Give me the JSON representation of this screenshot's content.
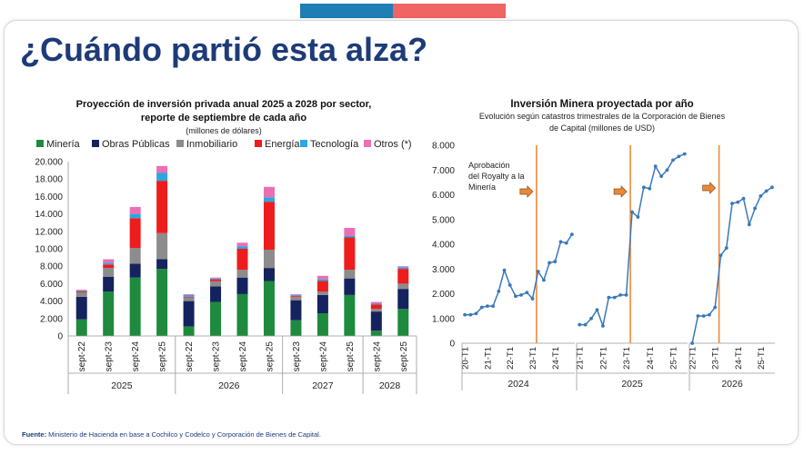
{
  "page": {
    "title": "¿Cuándo partió esta alza?",
    "source_label": "Fuente:",
    "source_text": " Ministerio de Hacienda en base a Cochilco y Codelco y Corporación de Bienes de Capital."
  },
  "chart_data": [
    {
      "type": "bar",
      "stacked": true,
      "title_line1": "Proyección de inversión privada anual 2025 a 2028 por sector,",
      "title_line2": "reporte de septiembre de cada año",
      "subtitle": "(millones de dólares)",
      "legend_position": "top",
      "ylim": [
        0,
        20000
      ],
      "y_ticks": [
        "0",
        "2.000",
        "4.000",
        "6.000",
        "8.000",
        "10.000",
        "12.000",
        "14.000",
        "16.000",
        "18.000",
        "20.000"
      ],
      "categories": [
        "sept-22",
        "sept-23",
        "sept-24",
        "sept-25",
        "sept-22",
        "sept-23",
        "sept-24",
        "sept-25",
        "sept-23",
        "sept-24",
        "sept-25",
        "sept-24",
        "sept-25"
      ],
      "groups": [
        {
          "label": "2025",
          "count": 4
        },
        {
          "label": "2026",
          "count": 4
        },
        {
          "label": "2027",
          "count": 3
        },
        {
          "label": "2028",
          "count": 2
        }
      ],
      "series": [
        {
          "name": "Minería",
          "color": "#1e8a3e",
          "values": [
            1900,
            5100,
            6700,
            7700,
            1100,
            3900,
            4800,
            6300,
            1800,
            2600,
            4700,
            600,
            3100
          ]
        },
        {
          "name": "Obras Públicas",
          "color": "#14235e",
          "values": [
            2600,
            1700,
            1600,
            1100,
            2900,
            1800,
            1900,
            1500,
            2300,
            2100,
            1900,
            2200,
            2300
          ]
        },
        {
          "name": "Inmobiliario",
          "color": "#8c8c8c",
          "values": [
            500,
            1000,
            1800,
            3000,
            400,
            600,
            900,
            2100,
            400,
            400,
            1000,
            300,
            600
          ]
        },
        {
          "name": "Energía",
          "color": "#ee1c1c",
          "values": [
            100,
            400,
            3400,
            6000,
            100,
            200,
            2400,
            5500,
            100,
            1200,
            3700,
            500,
            1700
          ]
        },
        {
          "name": "Tecnología",
          "color": "#2aa8df",
          "values": [
            100,
            200,
            500,
            900,
            200,
            100,
            300,
            500,
            100,
            200,
            200,
            100,
            200
          ]
        },
        {
          "name": "Otros (*)",
          "color": "#ec6fb4",
          "values": [
            100,
            400,
            800,
            800,
            100,
            100,
            400,
            1200,
            100,
            400,
            900,
            200,
            100
          ]
        }
      ]
    },
    {
      "type": "line",
      "title": "Inversión Minera proyectada por año",
      "subtitle_line1": "Evolución según catastros trimestrales de la Corporación de Bienes",
      "subtitle_line2": "de Capital (millones de USD)",
      "ylim": [
        0,
        8000
      ],
      "y_ticks": [
        "0",
        "1.000",
        "2.000",
        "3.000",
        "4.000",
        "5.000",
        "6.000",
        "7.000",
        "8.000"
      ],
      "line_color": "#3a78b8",
      "marker_line_color": "#ee8a3a",
      "annotation": "Aprobación del Royalty a la Minería",
      "annotation_lines": [
        "Aprobación",
        "del Royalty a la",
        "Minería"
      ],
      "panels": [
        {
          "year": "2024",
          "tick_labels": [
            "20-T1",
            "21-T1",
            "22-T1",
            "23-T1",
            "24-T1"
          ],
          "values": [
            1150,
            1150,
            1200,
            1450,
            1500,
            1500,
            2100,
            2950,
            2350,
            1900,
            1950,
            2050,
            1800,
            2900,
            2550,
            3250,
            3300,
            4100,
            4050,
            4400
          ],
          "marker_index": 13
        },
        {
          "year": "2025",
          "tick_labels": [
            "21-T1",
            "22-T1",
            "23-T1",
            "24-T1",
            "25-T1"
          ],
          "values": [
            750,
            750,
            1000,
            1350,
            700,
            1850,
            1850,
            1950,
            1950,
            5300,
            5100,
            6300,
            6250,
            7150,
            6750,
            7000,
            7400,
            7550,
            7650
          ],
          "marker_index": 9
        },
        {
          "year": "2026",
          "tick_labels": [
            "22-T1",
            "23-T1",
            "24-T1",
            "25-T1"
          ],
          "values": [
            0,
            1100,
            1100,
            1150,
            1450,
            3550,
            3850,
            5650,
            5700,
            5850,
            4800,
            5450,
            5950,
            6150,
            6300
          ],
          "marker_index": 5
        }
      ]
    }
  ]
}
